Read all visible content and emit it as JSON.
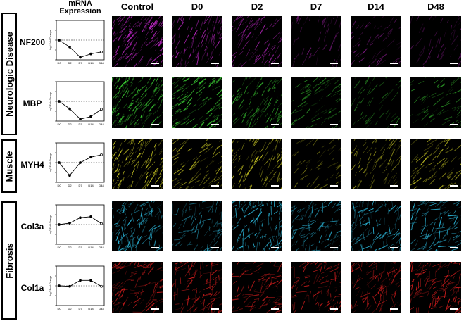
{
  "header": {
    "mrna_title_line1": "mRNA",
    "mrna_title_line2": "Expression",
    "columns": [
      "Control",
      "D0",
      "D2",
      "D7",
      "D14",
      "D48"
    ]
  },
  "groups": [
    {
      "label": "Neurologic Disease",
      "rows": [
        0,
        1
      ]
    },
    {
      "label": "Muscle",
      "rows": [
        2
      ]
    },
    {
      "label": "Fibrosis",
      "rows": [
        3,
        4
      ]
    }
  ],
  "rows": [
    {
      "gene": "NF200",
      "color": "#c028c8",
      "panel_brightness": [
        1.0,
        0.75,
        0.6,
        0.25,
        0.3,
        0.22
      ],
      "expression": [
        0,
        -1.4,
        -3.5,
        -2.8,
        -2.4
      ]
    },
    {
      "gene": "MBP",
      "color": "#39c832",
      "panel_brightness": [
        1.0,
        0.9,
        0.65,
        0.45,
        0.3,
        0.4
      ],
      "expression": [
        0,
        -1.5,
        -3.6,
        -3.1,
        -1.6
      ]
    },
    {
      "gene": "MYH4",
      "color": "#e2e028",
      "panel_brightness": [
        0.8,
        0.55,
        0.7,
        0.25,
        0.45,
        0.55
      ],
      "expression": [
        0,
        -2.6,
        0,
        1.1,
        1.6
      ]
    },
    {
      "gene": "Col3a",
      "color": "#2cb8dc",
      "panel_brightness": [
        0.85,
        0.6,
        0.95,
        0.7,
        0.9,
        0.95
      ],
      "expression": [
        0,
        0.3,
        1.4,
        1.6,
        0.2
      ]
    },
    {
      "gene": "Col1a",
      "color": "#d81e1e",
      "panel_brightness": [
        0.85,
        0.9,
        0.75,
        0.7,
        0.75,
        0.95
      ],
      "expression": [
        0,
        -0.1,
        1.1,
        1.1,
        -0.1
      ]
    }
  ],
  "plot": {
    "ylabel": "log2 Fold Change",
    "xticks": [
      "D0",
      "D2",
      "D7",
      "D14",
      "D48"
    ]
  }
}
